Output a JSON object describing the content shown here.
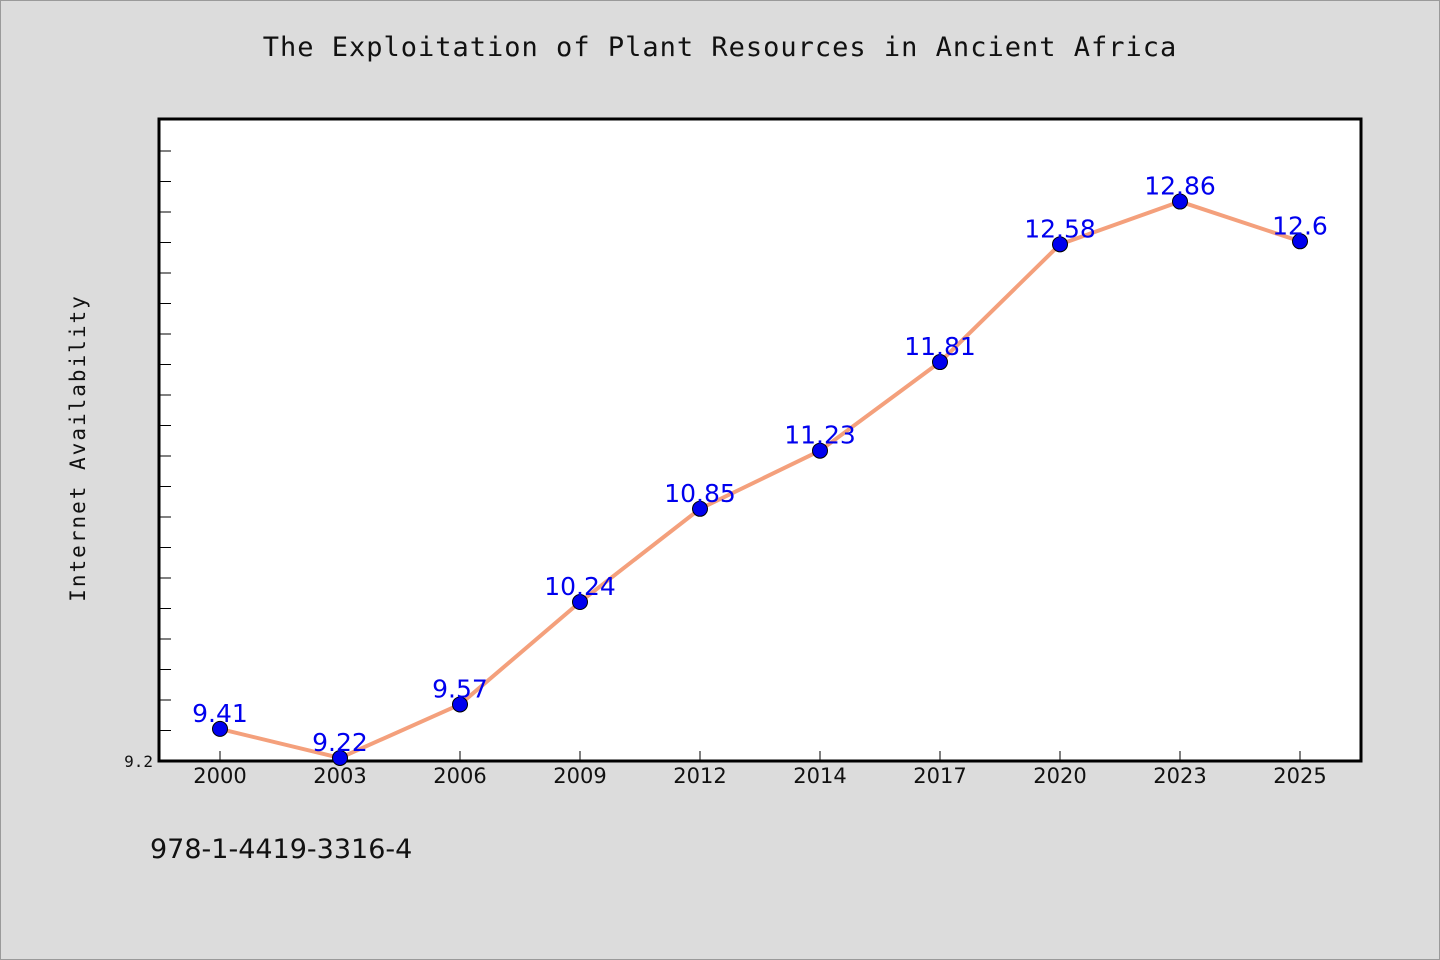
{
  "isbn": "978-1-4419-3316-4",
  "chart_data": {
    "type": "line",
    "title": "The Exploitation of Plant Resources in Ancient Africa",
    "xlabel": "",
    "ylabel": "Internet Availability",
    "categories": [
      "2000",
      "2003",
      "2006",
      "2009",
      "2012",
      "2014",
      "2017",
      "2020",
      "2023",
      "2025"
    ],
    "series": [
      {
        "values": [
          9.41,
          9.22,
          9.57,
          10.24,
          10.85,
          11.23,
          11.81,
          12.58,
          12.86,
          12.6
        ],
        "data_labels": [
          "9.41",
          "9.22",
          "9.57",
          "10.24",
          "10.85",
          "11.23",
          "11.81",
          "12.58",
          "12.86",
          "12.6"
        ],
        "line_color": "#f4a07c",
        "marker_color": "#0000ee"
      }
    ],
    "ylim": [
      9.2,
      13.4
    ],
    "y_tick_labels": [
      "9.2"
    ],
    "label_color": "#0000ee",
    "plot_background": "#ffffff",
    "page_background": "#dcdcdc",
    "grid": false,
    "legend": "none"
  }
}
